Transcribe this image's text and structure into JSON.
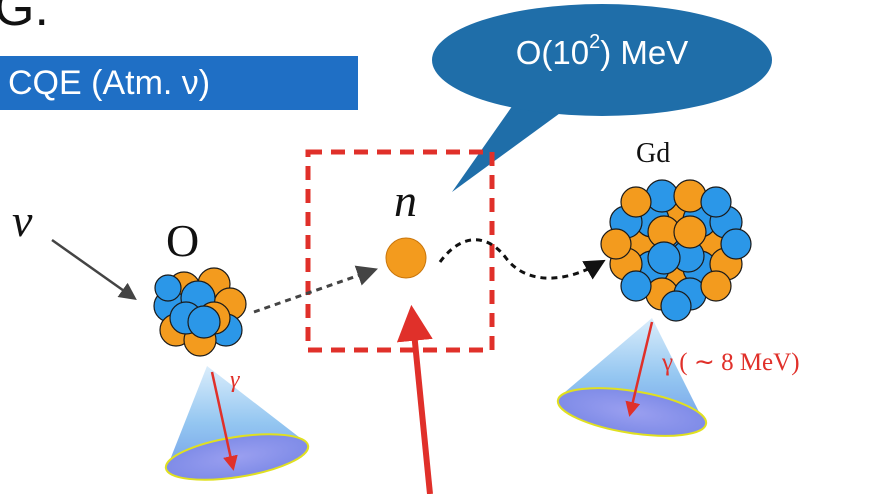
{
  "heading_fragment": "G.",
  "banner": {
    "text": "CQE (Atm. ν)"
  },
  "bubble": {
    "prefix": "O(10",
    "exponent": "2",
    "suffix": ") MeV"
  },
  "labels": {
    "nu": "ν",
    "oxygen": "O",
    "neutron": "n",
    "gadolinium": "Gd",
    "gamma_oxygen": "γ",
    "gamma_gd": "γ ( ∼ 8 MeV)"
  },
  "colors": {
    "banner": "#1f6fc5",
    "bubble": "#1f6ea9",
    "proton": "#f39b1e",
    "neutron_ball": "#2b97e8",
    "highlight_box": "#e0302a",
    "arrow_red": "#e0302a",
    "gamma_text": "#e0302a"
  }
}
